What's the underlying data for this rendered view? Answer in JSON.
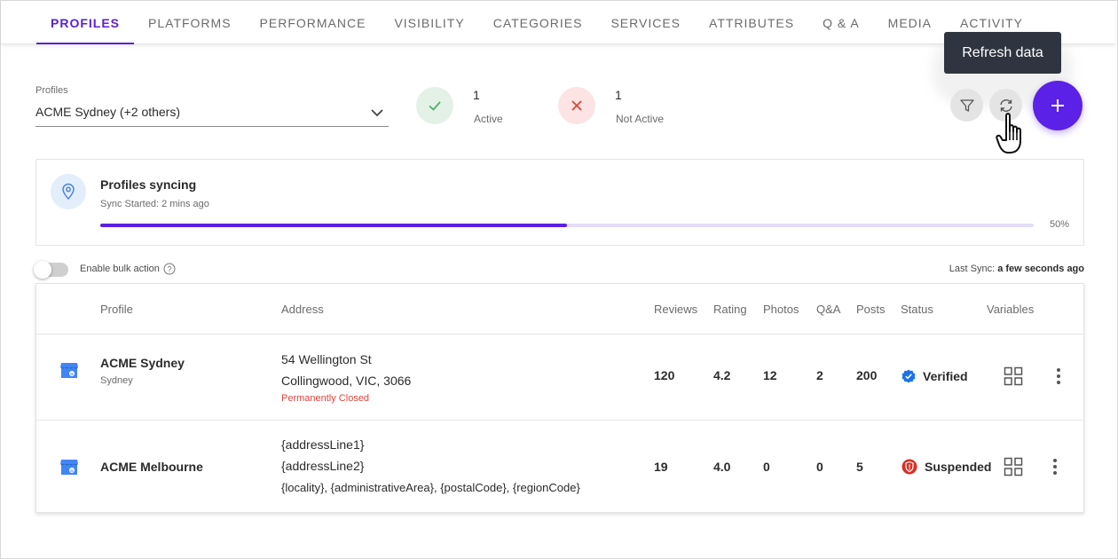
{
  "tabs": [
    {
      "label": "PROFILES",
      "active": true
    },
    {
      "label": "PLATFORMS"
    },
    {
      "label": "PERFORMANCE"
    },
    {
      "label": "VISIBILITY"
    },
    {
      "label": "CATEGORIES"
    },
    {
      "label": "SERVICES"
    },
    {
      "label": "ATTRIBUTES"
    },
    {
      "label": "Q & A"
    },
    {
      "label": "MEDIA"
    },
    {
      "label": "ACTIVITY"
    }
  ],
  "profiles_select": {
    "label": "Profiles",
    "value": "ACME Sydney (+2 others)"
  },
  "stats": {
    "active": {
      "count": "1",
      "label": "Active",
      "color": "#e3f1e6",
      "icon": "check-icon"
    },
    "not_active": {
      "count": "1",
      "label": "Not Active",
      "color": "#fbe4e3",
      "icon": "x-icon"
    }
  },
  "actions": {
    "tooltip": "Refresh data",
    "filter_icon": "filter-icon",
    "refresh_icon": "refresh-icon",
    "add_icon": "plus-icon"
  },
  "sync": {
    "title": "Profiles syncing",
    "subtitle": "Sync Started: 2 mins ago",
    "progress": 0.5,
    "progress_label": "50%"
  },
  "bulk": {
    "label": "Enable bulk action",
    "enabled": false
  },
  "last_sync": {
    "label": "Last Sync:",
    "value": "a few seconds ago"
  },
  "table": {
    "headers": {
      "profile": "Profile",
      "address": "Address",
      "reviews": "Reviews",
      "rating": "Rating",
      "photos": "Photos",
      "qa": "Q&A",
      "posts": "Posts",
      "status": "Status",
      "variables": "Variables"
    },
    "rows": [
      {
        "name": "ACME Sydney",
        "sub": "Sydney",
        "addr1": "54 Wellington St",
        "addr2": "Collingwood, VIC, 3066",
        "note": "Permanently Closed",
        "reviews": "120",
        "rating": "4.2",
        "photos": "12",
        "qa": "2",
        "posts": "200",
        "status": "Verified",
        "status_color": "#1a73e8"
      },
      {
        "name": "ACME Melbourne",
        "addr1": "{addressLine1}",
        "addr2": "{addressLine2}",
        "addr3": "{locality}, {administrativeArea}, {postalCode}, {regionCode}",
        "reviews": "19",
        "rating": "4.0",
        "photos": "0",
        "qa": "0",
        "posts": "5",
        "status": "Suspended",
        "status_color": "#d93025"
      }
    ]
  },
  "colors": {
    "accent": "#5b21e6",
    "text": "#2b2b2b",
    "muted": "#6b6b6b"
  }
}
